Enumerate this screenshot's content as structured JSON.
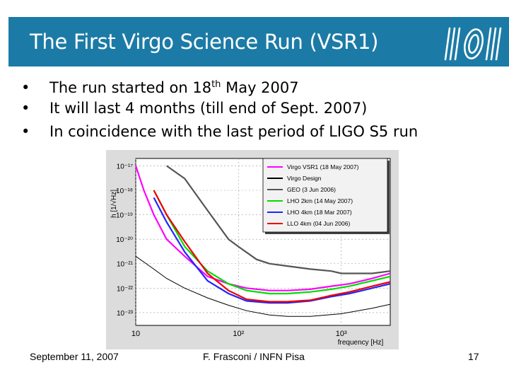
{
  "slide": {
    "title": "The First Virgo Science Run (VSR1)",
    "bullet_marker": "•",
    "bullets": [
      {
        "pre": "The run started on 18",
        "sup": "th",
        "post": " May 2007"
      },
      {
        "pre": "It will last 4 months (till end of Sept. 2007)",
        "sup": "",
        "post": ""
      },
      {
        "pre": "In coincidence with the last period of LIGO S5 run",
        "sup": "",
        "post": ""
      }
    ]
  },
  "footer": {
    "date": "September 11, 2007",
    "author": "F. Frasconi / INFN Pisa",
    "page": "17"
  },
  "colors": {
    "title_bar": "#1c7ba6",
    "virgo_vsr1": "#ff00ff",
    "virgo_design": "#000000",
    "geo": "#555555",
    "lho_2km": "#00dd00",
    "lho_4km": "#2222ff",
    "llo_4km": "#ee0000"
  },
  "chart_data": {
    "type": "line",
    "title": "",
    "xlabel": "frequency [Hz]",
    "ylabel": "h  [1/√Hz]",
    "xscale": "log",
    "yscale": "log",
    "xlim": [
      10,
      3000
    ],
    "ylim": [
      3e-24,
      2e-17
    ],
    "xticks": [
      {
        "value": 10,
        "label": "10"
      },
      {
        "value": 100,
        "label": "10²"
      },
      {
        "value": 1000,
        "label": "10³"
      }
    ],
    "yticks": [
      {
        "value": 1e-17,
        "label": "10⁻¹⁷"
      },
      {
        "value": 1e-18,
        "label": "10⁻¹⁸"
      },
      {
        "value": 1e-19,
        "label": "10⁻¹⁹"
      },
      {
        "value": 1e-20,
        "label": "10⁻²⁰"
      },
      {
        "value": 1e-21,
        "label": "10⁻²¹"
      },
      {
        "value": 1e-22,
        "label": "10⁻²²"
      },
      {
        "value": 1e-23,
        "label": "10⁻²³"
      }
    ],
    "grid": true,
    "legend_position": "top-right",
    "series": [
      {
        "name": "Virgo VSR1 (18 May 2007)",
        "color_key": "virgo_vsr1",
        "x": [
          10,
          12,
          15,
          20,
          30,
          50,
          80,
          120,
          200,
          300,
          500,
          800,
          1200,
          2000,
          3000
        ],
        "y": [
          1e-17,
          1e-18,
          1e-19,
          1e-20,
          2e-21,
          3e-22,
          1.5e-22,
          1e-22,
          8e-23,
          8e-23,
          9e-23,
          1.2e-22,
          1.5e-22,
          2.5e-22,
          4e-22
        ]
      },
      {
        "name": "Virgo Design",
        "color_key": "virgo_design",
        "x": [
          10,
          15,
          20,
          30,
          50,
          80,
          120,
          200,
          300,
          500,
          1000,
          2000,
          3000
        ],
        "y": [
          2e-21,
          6e-22,
          2.5e-22,
          1e-22,
          4e-23,
          2e-23,
          1.2e-23,
          8e-24,
          7e-24,
          7e-24,
          9e-24,
          1.5e-23,
          2.2e-23
        ]
      },
      {
        "name": "GEO (3 Jun 2006)",
        "color_key": "geo",
        "x": [
          20,
          30,
          50,
          80,
          100,
          150,
          200,
          300,
          500,
          800,
          1000,
          1500,
          2000,
          3000
        ],
        "y": [
          1e-17,
          3e-18,
          1.5e-19,
          1e-20,
          5e-21,
          1.5e-21,
          1e-21,
          8e-22,
          6e-22,
          5e-22,
          4e-22,
          4e-22,
          4e-22,
          5e-22
        ]
      },
      {
        "name": "LHO 2km (14 May 2007)",
        "color_key": "lho_2km",
        "x": [
          15,
          20,
          30,
          50,
          80,
          120,
          200,
          300,
          500,
          800,
          1200,
          2000,
          3000
        ],
        "y": [
          1e-18,
          1e-19,
          5e-21,
          5e-22,
          1.5e-22,
          8e-23,
          6e-23,
          6e-23,
          7e-23,
          9e-23,
          1.2e-22,
          2e-22,
          3e-22
        ]
      },
      {
        "name": "LHO 4km (18 Mar 2007)",
        "color_key": "lho_4km",
        "x": [
          15,
          20,
          30,
          50,
          80,
          120,
          200,
          300,
          500,
          800,
          1200,
          2000,
          3000
        ],
        "y": [
          5e-19,
          5e-20,
          3e-21,
          2e-22,
          6e-23,
          3e-23,
          2.5e-23,
          2.5e-23,
          3e-23,
          4.5e-23,
          6e-23,
          1e-22,
          1.5e-22
        ]
      },
      {
        "name": "LLO 4km (04 Jun 2006)",
        "color_key": "llo_4km",
        "x": [
          15,
          20,
          30,
          50,
          80,
          120,
          200,
          300,
          500,
          800,
          1200,
          2000,
          3000
        ],
        "y": [
          1e-18,
          1e-19,
          8e-21,
          4e-22,
          8e-23,
          3.5e-23,
          2.8e-23,
          2.8e-23,
          3.2e-23,
          5e-23,
          7e-23,
          1.2e-22,
          1.8e-22
        ]
      }
    ]
  }
}
